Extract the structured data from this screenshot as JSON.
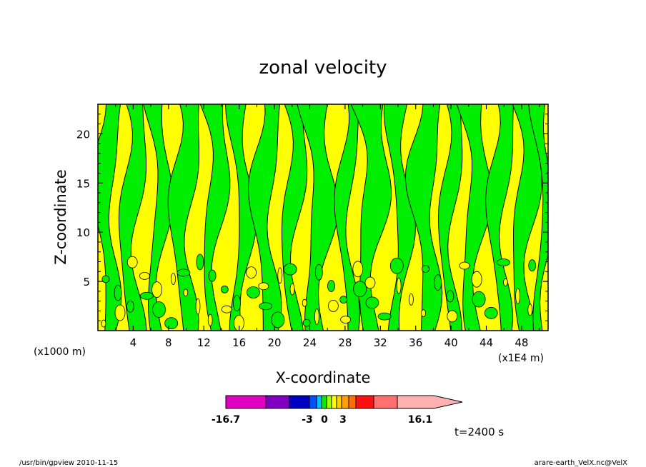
{
  "chart_data": {
    "type": "contour",
    "title": "zonal velocity",
    "xlabel": "X-coordinate",
    "ylabel": "Z-coordinate",
    "x_unit_left": "(x1000 m)",
    "x_unit_right": "(x1E4 m)",
    "xlim": [
      0,
      51
    ],
    "ylim": [
      0,
      23
    ],
    "x_ticks": [
      "4",
      "8",
      "12",
      "16",
      "20",
      "24",
      "28",
      "32",
      "36",
      "40",
      "44",
      "48"
    ],
    "y_ticks": [
      "5",
      "10",
      "15",
      "20"
    ],
    "fill_colors": {
      "negative": "#00ee00",
      "positive": "#ffff00",
      "contour_line": "#000000"
    },
    "colorbar": {
      "min_label": "-16.7",
      "max_label": "16.1",
      "tick_labels": [
        "-3",
        "0",
        "3"
      ],
      "colors": [
        "#e000c0",
        "#7f00c0",
        "#0000c0",
        "#0050ff",
        "#00c0ff",
        "#00ee00",
        "#a0ff00",
        "#ffff00",
        "#ffd000",
        "#ffa000",
        "#ff7000",
        "#ff1010",
        "#ff7070",
        "#ffb0b0"
      ]
    },
    "time_label": "t=2400 s"
  },
  "footer": {
    "left": "/usr/bin/gpview   2010-11-15",
    "right": "arare-earth_VelX.nc@VelX"
  }
}
